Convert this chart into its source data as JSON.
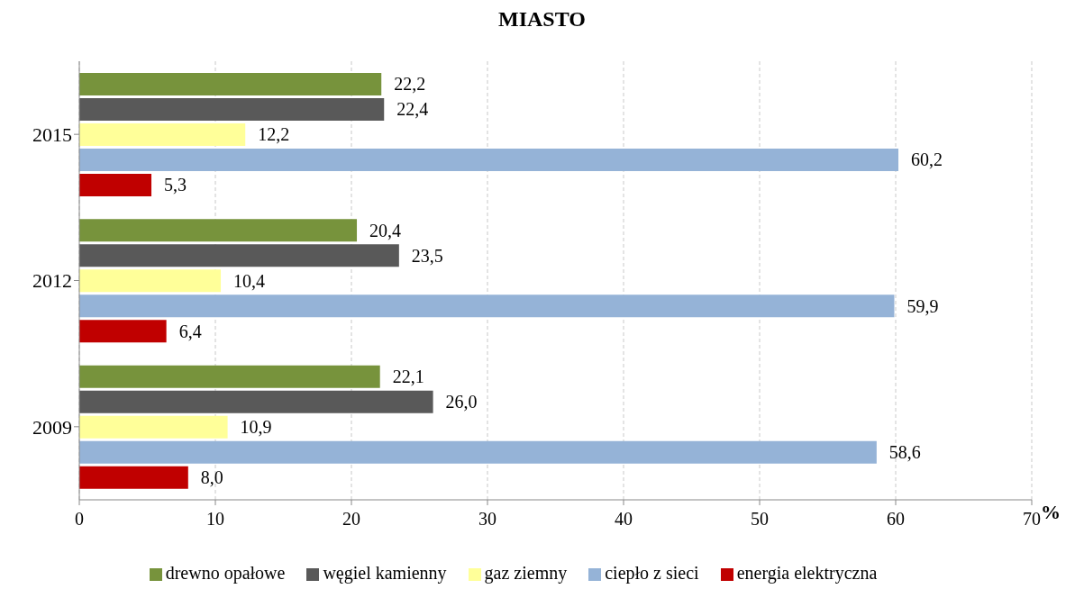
{
  "chart_data": {
    "type": "bar",
    "orientation": "horizontal",
    "title": "MIASTO",
    "xlabel": "%",
    "categories": [
      "2015",
      "2012",
      "2009"
    ],
    "series": [
      {
        "name": "drewno opałowe",
        "color": "#77933c",
        "values": [
          22.2,
          20.4,
          22.1
        ],
        "value_labels": [
          "22,2",
          "20,4",
          "22,1"
        ]
      },
      {
        "name": "węgiel kamienny",
        "color": "#595959",
        "values": [
          22.4,
          23.5,
          26.0
        ],
        "value_labels": [
          "22,4",
          "23,5",
          "26,0"
        ]
      },
      {
        "name": "gaz ziemny",
        "color": "#ffff99",
        "values": [
          12.2,
          10.4,
          10.9
        ],
        "value_labels": [
          "12,2",
          "10,4",
          "10,9"
        ]
      },
      {
        "name": "ciepło z sieci",
        "color": "#95b3d7",
        "values": [
          60.2,
          59.9,
          58.6
        ],
        "value_labels": [
          "60,2",
          "59,9",
          "58,6"
        ]
      },
      {
        "name": "energia elektryczna",
        "color": "#c00000",
        "values": [
          5.3,
          6.4,
          8.0
        ],
        "value_labels": [
          "5,3",
          "6,4",
          "8,0"
        ]
      }
    ],
    "xlim": [
      0,
      70
    ],
    "xticks": [
      0,
      10,
      20,
      30,
      40,
      50,
      60,
      70
    ],
    "grid": "x",
    "legend": "bottom"
  }
}
